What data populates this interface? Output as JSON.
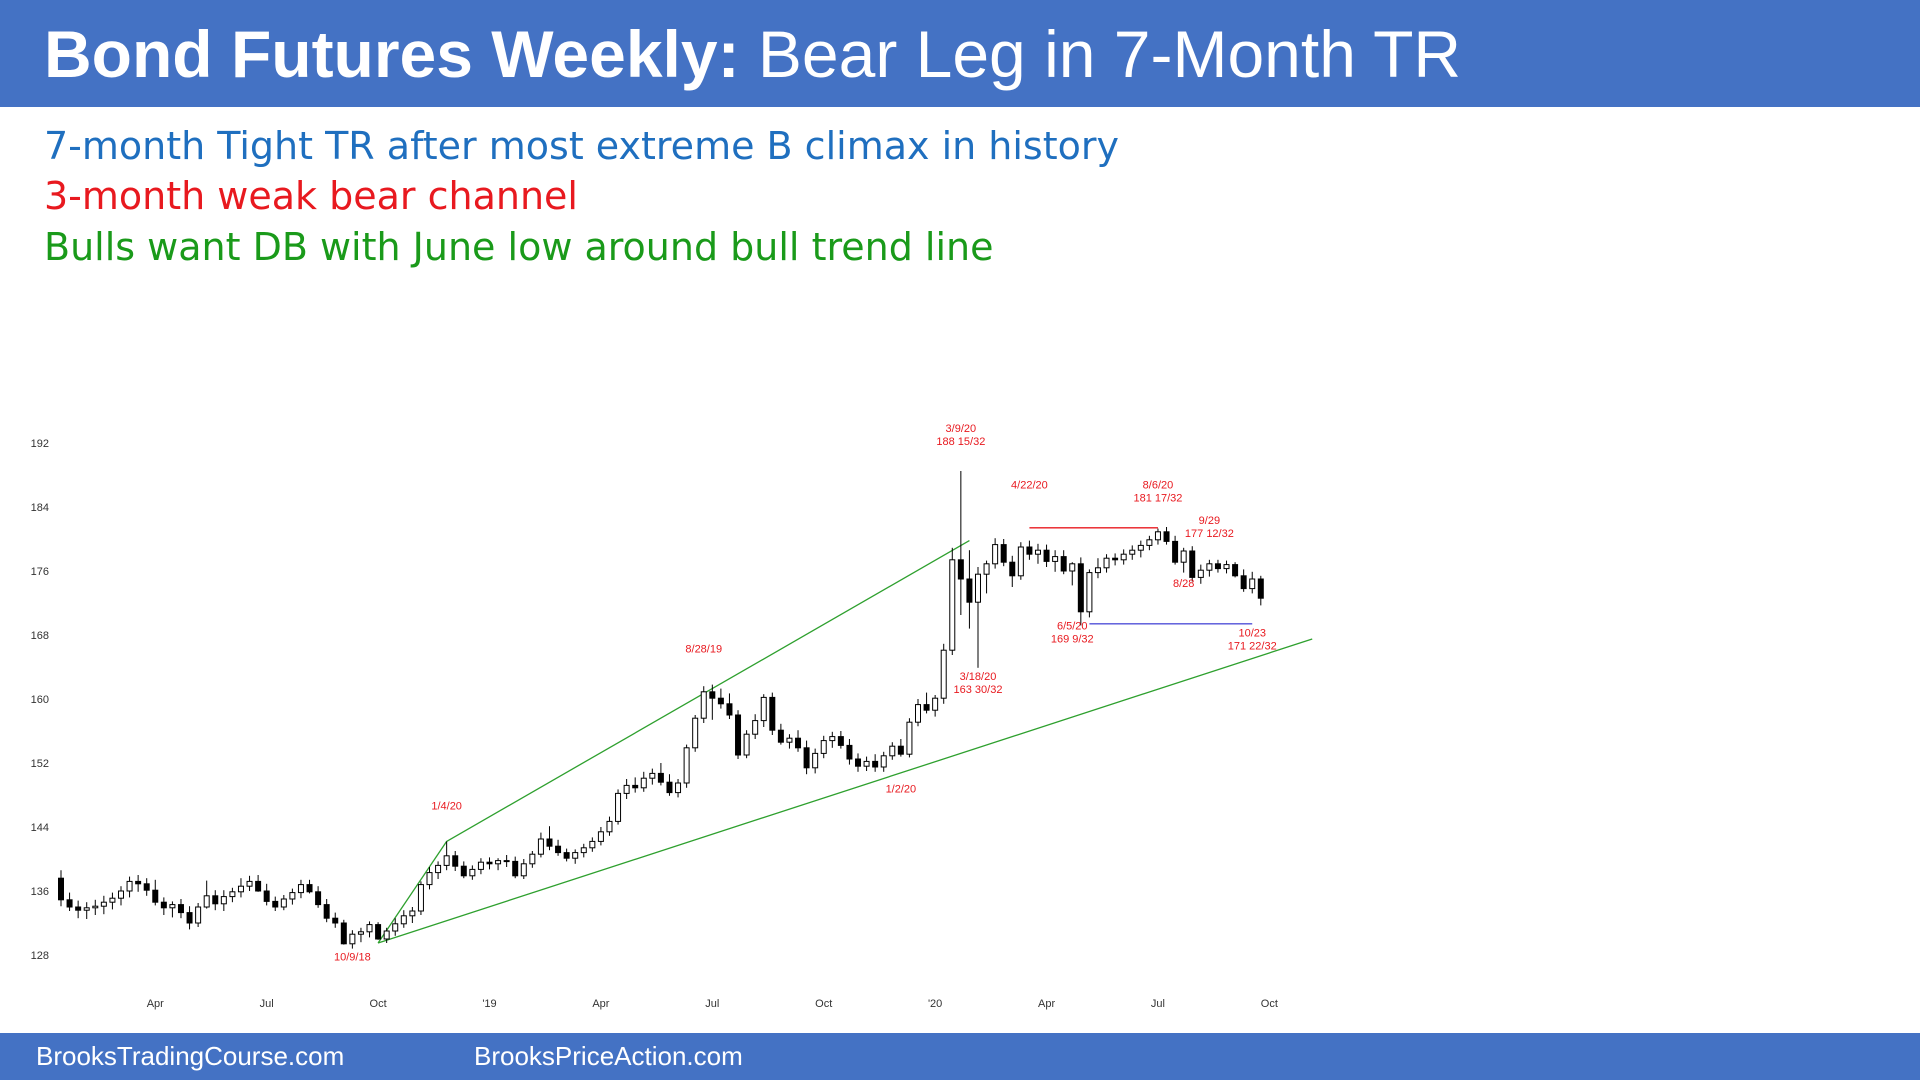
{
  "header": {
    "title_bold": "Bond Futures Weekly:",
    "title_rest": "Bear Leg in 7-Month TR"
  },
  "notes": [
    {
      "text": "7-month Tight TR after most extreme B climax in history",
      "color": "#1F6FBF"
    },
    {
      "text": "3-month weak bear channel",
      "color": "#E8191F"
    },
    {
      "text": "Bulls want DB with June low around bull trend line",
      "color": "#1A9A1A"
    }
  ],
  "footer": {
    "left": "BrooksTradingCourse.com",
    "right": "BrooksPriceAction.com"
  },
  "chart_data": {
    "type": "candlestick",
    "y_ticks": [
      128,
      136,
      144,
      152,
      160,
      168,
      176,
      184,
      192
    ],
    "ylim": [
      123,
      196
    ],
    "x_ticks": [
      {
        "label": "Apr",
        "week": 11
      },
      {
        "label": "Jul",
        "week": 24
      },
      {
        "label": "Oct",
        "week": 37
      },
      {
        "label": "'19",
        "week": 50
      },
      {
        "label": "Apr",
        "week": 63
      },
      {
        "label": "Jul",
        "week": 76
      },
      {
        "label": "Oct",
        "week": 89
      },
      {
        "label": "'20",
        "week": 102
      },
      {
        "label": "Apr",
        "week": 115
      },
      {
        "label": "Jul",
        "week": 128
      },
      {
        "label": "Oct",
        "week": 141
      }
    ],
    "candles": [
      [
        137.6,
        138.6,
        134.1,
        134.9
      ],
      [
        134.9,
        135.8,
        133.5,
        134.0
      ],
      [
        134.0,
        134.8,
        132.6,
        133.6
      ],
      [
        133.6,
        134.6,
        132.5,
        133.9
      ],
      [
        133.9,
        134.9,
        133.0,
        134.1
      ],
      [
        134.1,
        135.4,
        133.1,
        134.6
      ],
      [
        134.6,
        135.8,
        133.7,
        135.1
      ],
      [
        135.1,
        136.6,
        134.2,
        136.0
      ],
      [
        136.0,
        137.8,
        135.2,
        137.2
      ],
      [
        137.2,
        138.0,
        135.9,
        136.9
      ],
      [
        136.9,
        137.6,
        135.4,
        136.1
      ],
      [
        136.1,
        137.4,
        134.2,
        134.6
      ],
      [
        134.6,
        135.2,
        133.0,
        133.9
      ],
      [
        133.9,
        134.7,
        132.7,
        134.3
      ],
      [
        134.3,
        135.0,
        132.6,
        133.3
      ],
      [
        133.3,
        134.1,
        131.2,
        132.0
      ],
      [
        132.0,
        134.5,
        131.5,
        134.0
      ],
      [
        134.0,
        137.3,
        133.8,
        135.4
      ],
      [
        135.4,
        136.1,
        133.6,
        134.4
      ],
      [
        134.4,
        136.1,
        133.5,
        135.3
      ],
      [
        135.3,
        136.4,
        134.6,
        135.9
      ],
      [
        135.9,
        137.6,
        135.2,
        136.6
      ],
      [
        136.6,
        137.9,
        136.0,
        137.2
      ],
      [
        137.2,
        138.0,
        135.9,
        136.0
      ],
      [
        136.0,
        136.9,
        134.2,
        134.7
      ],
      [
        134.7,
        135.3,
        133.5,
        134.0
      ],
      [
        134.0,
        135.5,
        133.6,
        135.0
      ],
      [
        135.0,
        136.3,
        134.3,
        135.8
      ],
      [
        135.8,
        137.4,
        135.1,
        136.8
      ],
      [
        136.8,
        137.4,
        135.7,
        135.9
      ],
      [
        135.9,
        136.6,
        133.9,
        134.3
      ],
      [
        134.3,
        135.0,
        132.1,
        132.6
      ],
      [
        132.6,
        133.3,
        131.4,
        132.0
      ],
      [
        132.0,
        132.4,
        129.3,
        129.4
      ],
      [
        129.4,
        131.1,
        128.8,
        130.6
      ],
      [
        130.6,
        131.4,
        129.6,
        130.9
      ],
      [
        130.9,
        132.2,
        130.2,
        131.8
      ],
      [
        131.8,
        132.1,
        129.9,
        130.0
      ],
      [
        130.0,
        131.4,
        129.5,
        131.0
      ],
      [
        131.0,
        132.6,
        130.4,
        131.9
      ],
      [
        131.9,
        133.6,
        131.4,
        132.9
      ],
      [
        132.9,
        134.0,
        132.0,
        133.5
      ],
      [
        133.5,
        137.2,
        133.0,
        136.8
      ],
      [
        136.8,
        139.0,
        136.2,
        138.3
      ],
      [
        138.3,
        139.7,
        137.5,
        139.2
      ],
      [
        139.2,
        142.2,
        138.6,
        140.4
      ],
      [
        140.4,
        141.0,
        138.5,
        139.1
      ],
      [
        139.1,
        139.7,
        137.6,
        137.9
      ],
      [
        137.9,
        139.2,
        137.4,
        138.7
      ],
      [
        138.7,
        140.1,
        138.1,
        139.6
      ],
      [
        139.6,
        140.2,
        138.7,
        139.4
      ],
      [
        139.4,
        140.1,
        138.6,
        139.8
      ],
      [
        139.8,
        140.5,
        139.0,
        139.7
      ],
      [
        139.7,
        140.3,
        137.6,
        137.9
      ],
      [
        137.9,
        140.0,
        137.5,
        139.4
      ],
      [
        139.4,
        141.0,
        138.9,
        140.6
      ],
      [
        140.6,
        143.3,
        140.2,
        142.5
      ],
      [
        142.5,
        144.1,
        141.1,
        141.6
      ],
      [
        141.6,
        142.4,
        140.4,
        140.8
      ],
      [
        140.8,
        141.3,
        139.7,
        140.1
      ],
      [
        140.1,
        141.2,
        139.4,
        140.8
      ],
      [
        140.8,
        141.9,
        140.2,
        141.4
      ],
      [
        141.4,
        142.7,
        140.9,
        142.2
      ],
      [
        142.2,
        144.0,
        141.7,
        143.4
      ],
      [
        143.4,
        145.3,
        142.9,
        144.7
      ],
      [
        144.7,
        148.7,
        144.3,
        148.2
      ],
      [
        148.2,
        150.0,
        147.5,
        149.2
      ],
      [
        149.2,
        150.2,
        148.3,
        148.9
      ],
      [
        148.9,
        150.9,
        148.4,
        150.1
      ],
      [
        150.1,
        151.3,
        149.3,
        150.7
      ],
      [
        150.7,
        152.0,
        149.2,
        149.6
      ],
      [
        149.6,
        150.6,
        147.9,
        148.3
      ],
      [
        148.3,
        150.0,
        147.7,
        149.5
      ],
      [
        149.5,
        154.3,
        148.9,
        153.9
      ],
      [
        153.9,
        158.0,
        153.4,
        157.6
      ],
      [
        157.6,
        161.6,
        157.0,
        160.9
      ],
      [
        160.9,
        161.8,
        157.4,
        160.1
      ],
      [
        160.1,
        161.3,
        158.8,
        159.4
      ],
      [
        159.4,
        160.7,
        157.5,
        158.0
      ],
      [
        158.0,
        158.6,
        152.5,
        153.0
      ],
      [
        153.0,
        156.1,
        152.6,
        155.6
      ],
      [
        155.6,
        158.1,
        155.0,
        157.3
      ],
      [
        157.3,
        160.6,
        156.5,
        160.2
      ],
      [
        160.2,
        160.8,
        155.5,
        156.1
      ],
      [
        156.1,
        156.9,
        154.3,
        154.6
      ],
      [
        154.6,
        155.6,
        153.8,
        155.1
      ],
      [
        155.1,
        156.1,
        153.4,
        153.9
      ],
      [
        153.9,
        154.8,
        150.6,
        151.4
      ],
      [
        151.4,
        153.8,
        150.7,
        153.2
      ],
      [
        153.2,
        155.4,
        152.6,
        154.8
      ],
      [
        154.8,
        155.9,
        153.9,
        155.3
      ],
      [
        155.3,
        156.0,
        153.8,
        154.2
      ],
      [
        154.2,
        155.0,
        151.8,
        152.5
      ],
      [
        152.5,
        153.2,
        150.9,
        151.6
      ],
      [
        151.6,
        152.8,
        151.0,
        152.2
      ],
      [
        152.2,
        153.1,
        150.9,
        151.5
      ],
      [
        151.5,
        153.4,
        150.9,
        152.9
      ],
      [
        152.9,
        154.6,
        152.4,
        154.1
      ],
      [
        154.1,
        155.0,
        152.8,
        153.1
      ],
      [
        153.1,
        157.6,
        152.7,
        157.1
      ],
      [
        157.1,
        160.0,
        156.6,
        159.3
      ],
      [
        159.3,
        160.8,
        158.2,
        158.6
      ],
      [
        158.6,
        160.5,
        157.8,
        160.1
      ],
      [
        160.1,
        166.9,
        159.4,
        166.1
      ],
      [
        166.1,
        178.9,
        165.5,
        177.4
      ],
      [
        177.4,
        188.5,
        170.5,
        175.0
      ],
      [
        175.0,
        178.6,
        168.8,
        172.1
      ],
      [
        172.1,
        176.5,
        163.9,
        175.6
      ],
      [
        175.6,
        177.3,
        173.2,
        176.9
      ],
      [
        176.9,
        180.1,
        176.3,
        179.3
      ],
      [
        179.3,
        180.0,
        176.6,
        177.1
      ],
      [
        177.1,
        177.9,
        174.0,
        175.4
      ],
      [
        175.4,
        179.6,
        174.9,
        179.0
      ],
      [
        179.0,
        179.8,
        177.4,
        178.1
      ],
      [
        178.1,
        179.4,
        176.9,
        178.6
      ],
      [
        178.6,
        179.3,
        176.5,
        177.2
      ],
      [
        177.2,
        178.6,
        175.9,
        177.8
      ],
      [
        177.8,
        178.6,
        175.6,
        176.0
      ],
      [
        176.0,
        177.1,
        174.2,
        176.9
      ],
      [
        176.9,
        177.7,
        169.2,
        170.9
      ],
      [
        170.9,
        176.2,
        170.2,
        175.8
      ],
      [
        175.8,
        177.6,
        175.1,
        176.4
      ],
      [
        176.4,
        178.1,
        175.8,
        177.6
      ],
      [
        177.6,
        178.2,
        176.7,
        177.4
      ],
      [
        177.4,
        178.7,
        176.8,
        178.1
      ],
      [
        178.1,
        179.2,
        177.4,
        178.6
      ],
      [
        178.6,
        179.8,
        177.7,
        179.2
      ],
      [
        179.2,
        180.4,
        178.6,
        179.9
      ],
      [
        179.9,
        181.3,
        179.3,
        180.9
      ],
      [
        180.9,
        181.5,
        179.3,
        179.7
      ],
      [
        179.7,
        180.4,
        176.8,
        177.1
      ],
      [
        177.1,
        178.9,
        175.8,
        178.5
      ],
      [
        178.5,
        179.1,
        174.7,
        175.2
      ],
      [
        175.2,
        176.8,
        174.4,
        176.1
      ],
      [
        176.1,
        177.4,
        175.3,
        176.9
      ],
      [
        176.9,
        177.4,
        175.8,
        176.3
      ],
      [
        176.3,
        177.3,
        175.7,
        176.8
      ],
      [
        176.8,
        177.1,
        175.2,
        175.4
      ],
      [
        175.4,
        176.2,
        173.4,
        173.8
      ],
      [
        173.8,
        175.9,
        173.2,
        175.0
      ],
      [
        175.0,
        175.4,
        171.7,
        172.6
      ]
    ],
    "trend_lines": [
      {
        "color": "#2EA02E",
        "from": {
          "week": 37,
          "price": 129.5
        },
        "to": {
          "week": 146,
          "price": 167.5
        }
      },
      {
        "color": "#2EA02E",
        "from": {
          "week": 37,
          "price": 129.5
        },
        "to": {
          "week": 45,
          "price": 142.2
        }
      },
      {
        "color": "#2EA02E",
        "from": {
          "week": 45,
          "price": 142.2
        },
        "to": {
          "week": 106,
          "price": 179.8
        }
      }
    ],
    "levels": [
      {
        "color": "#E8191F",
        "price": 181.4,
        "from_week": 113,
        "to_week": 128
      },
      {
        "color": "#5050D8",
        "price": 169.4,
        "from_week": 120,
        "to_week": 139
      }
    ],
    "annotations": [
      {
        "lines": [
          "10/9/18"
        ],
        "week": 34,
        "price": 127.3
      },
      {
        "lines": [
          "1/4/20"
        ],
        "week": 45,
        "price": 146.2
      },
      {
        "lines": [
          "8/28/19"
        ],
        "week": 75,
        "price": 165.8
      },
      {
        "lines": [
          "1/2/20"
        ],
        "week": 98,
        "price": 148.3
      },
      {
        "lines": [
          "3/9/20",
          "188 15/32"
        ],
        "week": 105,
        "price": 193.4
      },
      {
        "lines": [
          "3/18/20",
          "163 30/32"
        ],
        "week": 107,
        "price": 162.4
      },
      {
        "lines": [
          "4/22/20"
        ],
        "week": 113,
        "price": 186.3
      },
      {
        "lines": [
          "6/5/20",
          "169 9/32"
        ],
        "week": 118,
        "price": 168.7
      },
      {
        "lines": [
          "8/6/20",
          "181 17/32"
        ],
        "week": 128,
        "price": 186.3
      },
      {
        "lines": [
          "8/28"
        ],
        "week": 131,
        "price": 174.0
      },
      {
        "lines": [
          "9/29",
          "177 12/32"
        ],
        "week": 134,
        "price": 181.9
      },
      {
        "lines": [
          "10/23",
          "171 22/32"
        ],
        "week": 139,
        "price": 167.8
      }
    ]
  }
}
